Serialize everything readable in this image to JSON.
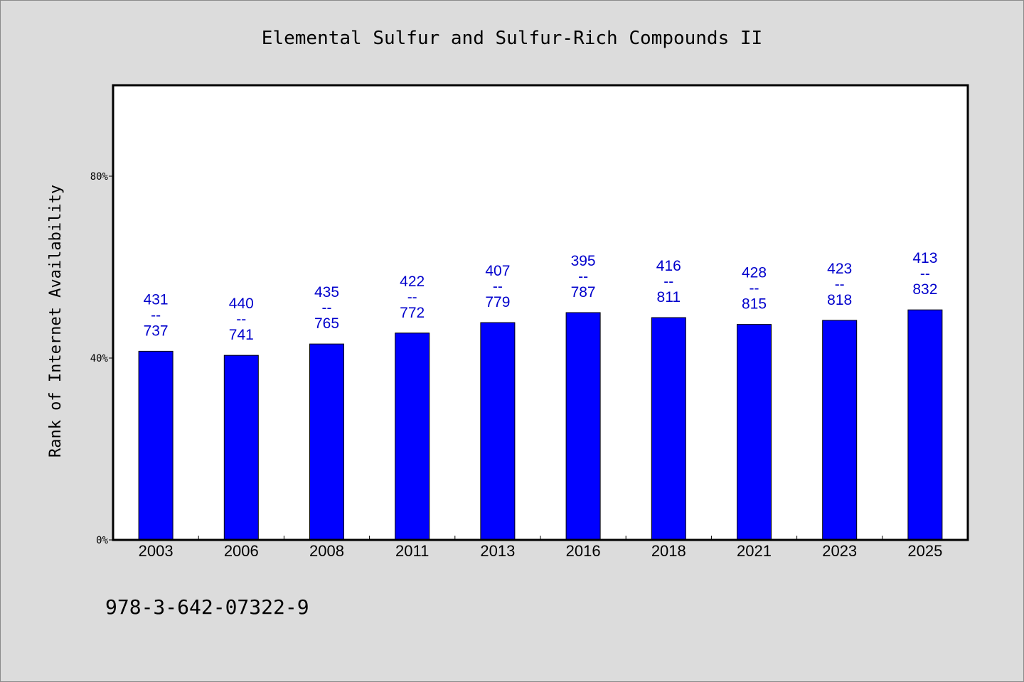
{
  "chart_data": {
    "type": "bar",
    "title": "Elemental Sulfur and Sulfur-Rich Compounds II",
    "xlabel": "",
    "ylabel": "Rank of Internet Availability",
    "ylim": [
      0,
      100
    ],
    "yticks": [
      {
        "value": 0,
        "label": "0%"
      },
      {
        "value": 40,
        "label": "40%"
      },
      {
        "value": 80,
        "label": "80%"
      }
    ],
    "categories": [
      "2003",
      "2006",
      "2008",
      "2011",
      "2013",
      "2016",
      "2018",
      "2021",
      "2023",
      "2025"
    ],
    "values": [
      41.5,
      40.6,
      43.1,
      45.5,
      47.8,
      50.0,
      48.9,
      47.4,
      48.3,
      50.6
    ],
    "labels": [
      {
        "top": "431",
        "sep": "--",
        "bottom": "737"
      },
      {
        "top": "440",
        "sep": "--",
        "bottom": "741"
      },
      {
        "top": "435",
        "sep": "--",
        "bottom": "765"
      },
      {
        "top": "422",
        "sep": "--",
        "bottom": "772"
      },
      {
        "top": "407",
        "sep": "--",
        "bottom": "779"
      },
      {
        "top": "395",
        "sep": "--",
        "bottom": "787"
      },
      {
        "top": "416",
        "sep": "--",
        "bottom": "811"
      },
      {
        "top": "428",
        "sep": "--",
        "bottom": "815"
      },
      {
        "top": "423",
        "sep": "--",
        "bottom": "818"
      },
      {
        "top": "413",
        "sep": "--",
        "bottom": "832"
      }
    ],
    "grid": false,
    "legend": "none",
    "colors": {
      "bar": "#0000ff",
      "label": "#0000cc",
      "page_background": "#dcdcdc",
      "plot_background": "#ffffff"
    }
  },
  "footnote": "978-3-642-07322-9"
}
